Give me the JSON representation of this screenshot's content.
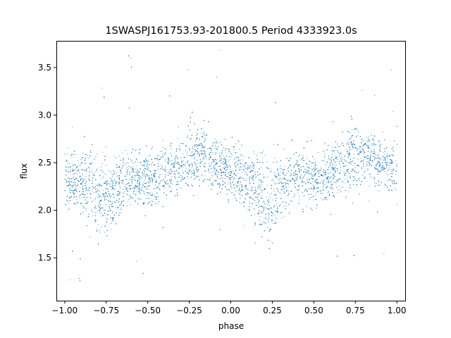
{
  "chart_data": {
    "type": "scatter",
    "title": "1SWASPJ161753.93-201800.5 Period 4333923.0s",
    "xlabel": "phase",
    "ylabel": "flux",
    "xlim": [
      -1.05,
      1.05
    ],
    "ylim": [
      1.05,
      3.78
    ],
    "x_ticks": [
      -1.0,
      -0.75,
      -0.5,
      -0.25,
      0.0,
      0.25,
      0.5,
      0.75,
      1.0
    ],
    "x_tick_labels": [
      "−1.00",
      "−0.75",
      "−0.50",
      "−0.25",
      "0.00",
      "0.25",
      "0.50",
      "0.75",
      "1.00"
    ],
    "y_ticks": [
      1.5,
      2.0,
      2.5,
      3.0,
      3.5
    ],
    "y_tick_labels": [
      "1.5",
      "2.0",
      "2.5",
      "3.0",
      "3.5"
    ],
    "grid": false,
    "legend": "none",
    "marker_color": "#1f77b4",
    "series": [
      {
        "x": [
          -1.0,
          -0.95,
          -0.9,
          -0.85,
          -0.8,
          -0.75,
          -0.7,
          -0.65,
          -0.6,
          -0.55,
          -0.5,
          -0.45,
          -0.4,
          -0.35,
          -0.3,
          -0.25,
          -0.2,
          -0.15,
          -0.1,
          -0.05,
          0.0,
          0.05,
          0.1,
          0.15,
          0.2,
          0.25,
          0.3,
          0.35,
          0.4,
          0.45,
          0.5,
          0.55,
          0.6,
          0.65,
          0.7,
          0.75,
          0.8,
          0.85,
          0.9,
          0.95,
          1.0
        ],
        "y": [
          2.35,
          2.3,
          2.3,
          2.25,
          2.15,
          2.1,
          2.2,
          2.3,
          2.35,
          2.35,
          2.3,
          2.35,
          2.4,
          2.45,
          2.5,
          2.55,
          2.6,
          2.55,
          2.5,
          2.45,
          2.4,
          2.35,
          2.3,
          2.25,
          2.15,
          2.1,
          2.2,
          2.3,
          2.35,
          2.35,
          2.3,
          2.35,
          2.4,
          2.45,
          2.5,
          2.55,
          2.6,
          2.55,
          2.5,
          2.45,
          2.4
        ],
        "spread": [
          0.25,
          0.28,
          0.3,
          0.32,
          0.38,
          0.4,
          0.32,
          0.28,
          0.25,
          0.25,
          0.25,
          0.25,
          0.25,
          0.27,
          0.3,
          0.32,
          0.28,
          0.25,
          0.25,
          0.25,
          0.25,
          0.28,
          0.3,
          0.32,
          0.38,
          0.4,
          0.32,
          0.28,
          0.25,
          0.25,
          0.25,
          0.25,
          0.25,
          0.27,
          0.3,
          0.32,
          0.28,
          0.25,
          0.25,
          0.25,
          0.25
        ]
      }
    ]
  }
}
